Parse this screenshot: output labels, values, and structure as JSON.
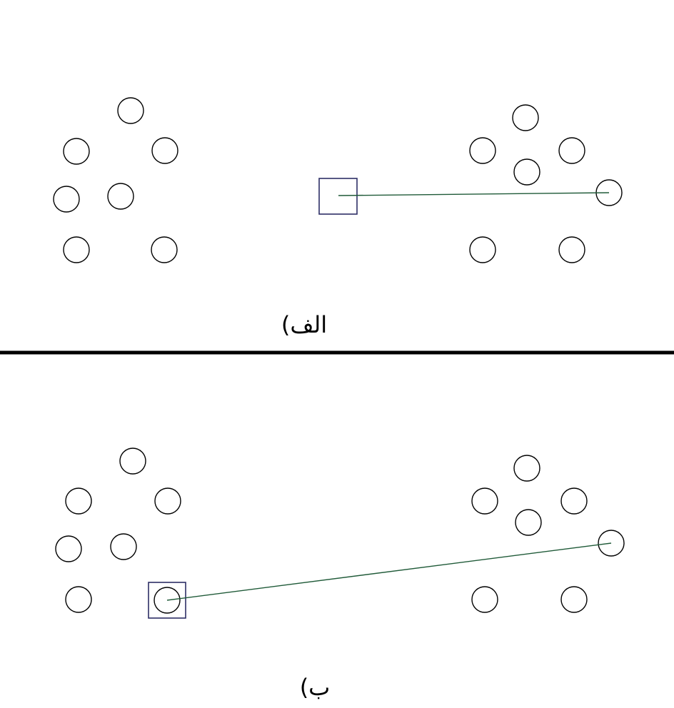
{
  "colors": {
    "point_stroke": "#000000",
    "box_stroke": "#2d2e66",
    "link_stroke": "#1f5a38",
    "divider": "#000000"
  },
  "panels": [
    {
      "id": "a",
      "label": "الف)"
    },
    {
      "id": "b",
      "label": "ب)"
    }
  ]
}
